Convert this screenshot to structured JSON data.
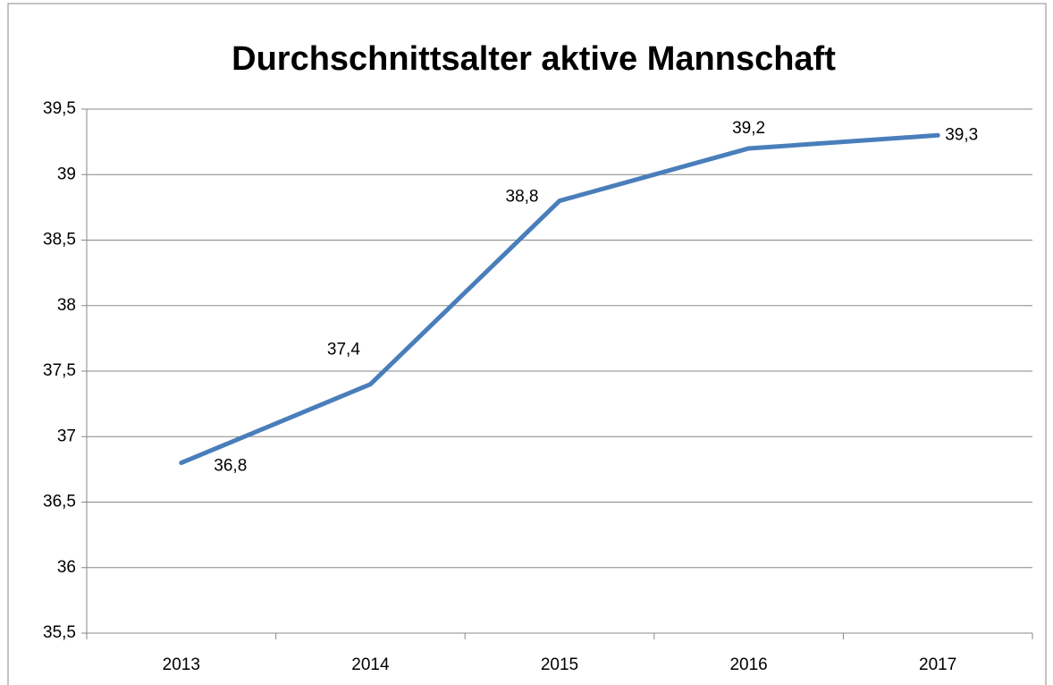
{
  "chart_data": {
    "type": "line",
    "title": "Durchschnittsalter aktive Mannschaft",
    "categories": [
      "2013",
      "2014",
      "2015",
      "2016",
      "2017"
    ],
    "series": [
      {
        "name": "Durchschnittsalter",
        "color": "#4a7ebb",
        "values": [
          36.8,
          37.4,
          38.8,
          39.2,
          39.3
        ],
        "value_labels": [
          "36,8",
          "37,4",
          "38,8",
          "39,2",
          "39,3"
        ]
      }
    ],
    "ylim": [
      35.5,
      39.5
    ],
    "yticks": [
      {
        "value": 35.5,
        "label": "35,5"
      },
      36,
      {
        "value": 36.5,
        "label": "36,5"
      },
      37,
      {
        "value": 37.5,
        "label": "37,5"
      },
      38,
      {
        "value": 38.5,
        "label": "38,5"
      },
      39,
      {
        "value": 39.5,
        "label": "39,5"
      }
    ],
    "grid": true
  }
}
